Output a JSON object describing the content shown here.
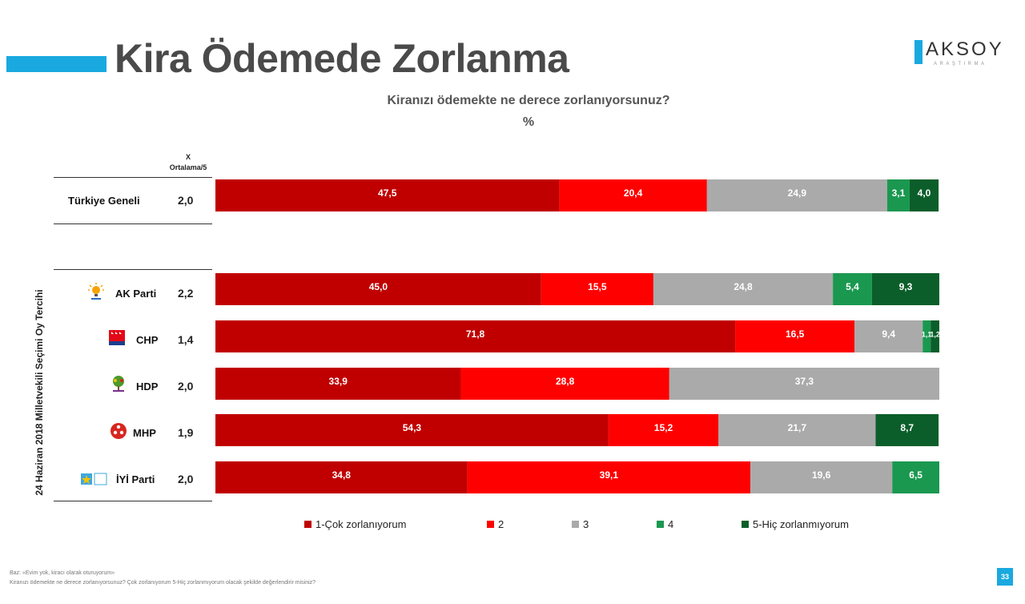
{
  "header": {
    "title": "Kira Ödemede Zorlanma",
    "accent_color": "#19a9e0"
  },
  "logo": {
    "word": "AKSOY",
    "sub": "ARAŞTIRMA"
  },
  "chart_title": "Kiranızı ödemekte ne derece zorlanıyorsunuz?",
  "chart_unit": "%",
  "avg_header": {
    "line1": "X",
    "line2": "Ortalama/5"
  },
  "side_label": "24 Haziran 2018 Milletvekili Seçimi Oy Tercihi",
  "chart_data": {
    "type": "bar",
    "orientation": "horizontal",
    "stacked": true,
    "title": "Kiranızı ödemekte ne derece zorlanıyorsunuz?",
    "unit": "%",
    "xlim": [
      0,
      100
    ],
    "categories": [
      "Türkiye Geneli",
      "AK Parti",
      "CHP",
      "HDP",
      "MHP",
      "İYİ Parti"
    ],
    "averages": [
      "2,0",
      "2,2",
      "1,4",
      "2,0",
      "1,9",
      "2,0"
    ],
    "series": [
      {
        "name": "1-Çok zorlanıyorum",
        "color": "#c00000",
        "values": [
          47.5,
          45.0,
          71.8,
          33.9,
          54.3,
          34.8
        ],
        "labels": [
          "47,5",
          "45,0",
          "71,8",
          "33,9",
          "54,3",
          "34,8"
        ]
      },
      {
        "name": "2",
        "color": "#ff0000",
        "values": [
          20.4,
          15.5,
          16.5,
          28.8,
          15.2,
          39.1
        ],
        "labels": [
          "20,4",
          "15,5",
          "16,5",
          "28,8",
          "15,2",
          "39,1"
        ]
      },
      {
        "name": "3",
        "color": "#aaaaaa",
        "values": [
          24.9,
          24.8,
          9.4,
          37.3,
          21.7,
          19.6
        ],
        "labels": [
          "24,9",
          "24,8",
          "9,4",
          "37,3",
          "21,7",
          "19,6"
        ]
      },
      {
        "name": "4",
        "color": "#1a9850",
        "values": [
          3.1,
          5.4,
          1.1,
          0,
          0,
          6.5
        ],
        "labels": [
          "3,1",
          "5,4",
          "1,1",
          "",
          "",
          "6,5"
        ]
      },
      {
        "name": "5-Hiç zorlanmıyorum",
        "color": "#0b5e2a",
        "values": [
          4.0,
          9.3,
          1.2,
          0,
          8.7,
          0
        ],
        "labels": [
          "4,0",
          "9,3",
          "1,2",
          "",
          "8,7",
          ""
        ]
      }
    ],
    "legend_position": "bottom",
    "grid": false
  },
  "footnote": {
    "line1": "Baz: «Evim yok, kiracı olarak oturuyorum»",
    "line2": "Kiranızı ödemekte ne derece zorlanıyorsunuz? Çok zorlanıyorum 5-Hiç zorlanmıyorum olacak şekilde değerlendirir misiniz?"
  },
  "page_number": "33"
}
